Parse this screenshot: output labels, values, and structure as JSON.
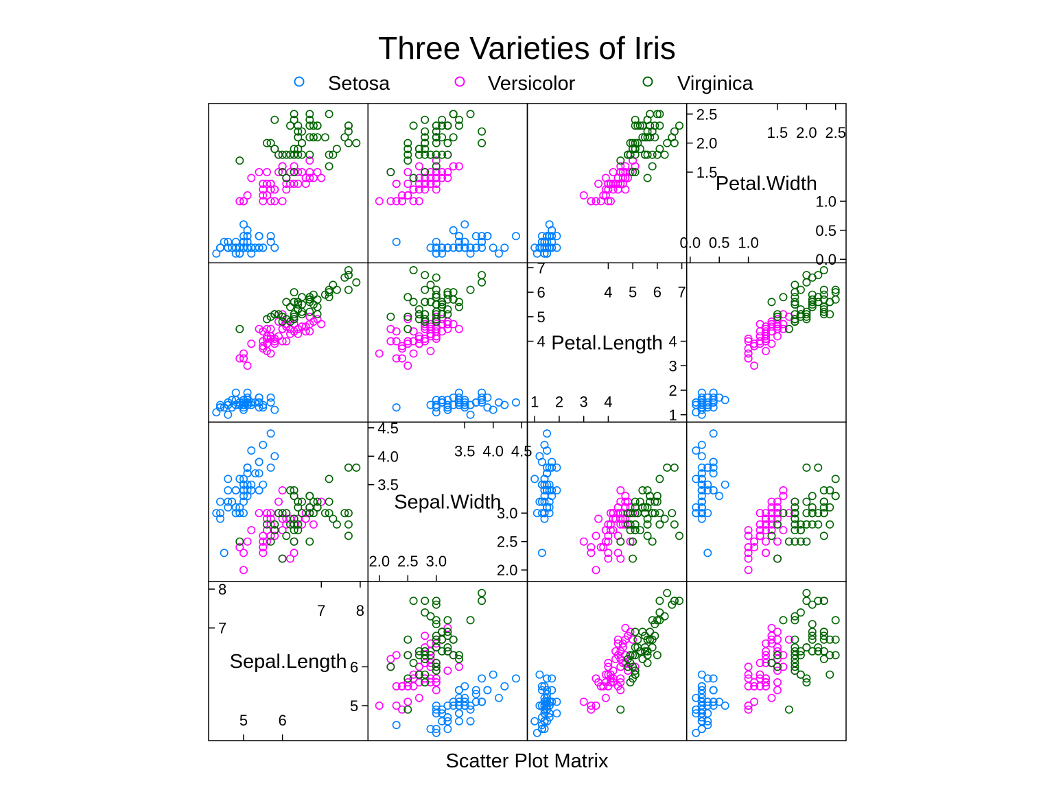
{
  "chart_data": {
    "type": "scatter",
    "title": "Three Varieties of Iris",
    "xlabel": "Scatter Plot Matrix",
    "variables": [
      "Sepal.Length",
      "Sepal.Width",
      "Petal.Length",
      "Petal.Width"
    ],
    "ranges": [
      [
        4.1,
        8.2
      ],
      [
        1.8,
        4.6
      ],
      [
        0.7,
        7.2
      ],
      [
        -0.06,
        2.68
      ]
    ],
    "ticks": {
      "Sepal.Length": {
        "low": [
          "5",
          "6"
        ],
        "high": [
          "7",
          "8"
        ]
      },
      "Sepal.Width": {
        "low": [
          "2.0",
          "2.5",
          "3.0"
        ],
        "high": [
          "3.5",
          "4.0",
          "4.5"
        ]
      },
      "Petal.Length": {
        "low": [
          "1",
          "2",
          "3",
          "4"
        ],
        "high": [
          "4",
          "5",
          "6",
          "7"
        ]
      },
      "Petal.Width": {
        "low": [
          "0.0",
          "0.5",
          "1.0"
        ],
        "high": [
          "1.5",
          "2.0",
          "2.5"
        ]
      }
    },
    "legend_position": "top",
    "colors": {
      "Setosa": "#0080ff",
      "Versicolor": "#ff00ff",
      "Virginica": "#006400"
    },
    "series": [
      {
        "name": "Setosa",
        "points": [
          [
            5.1,
            3.5,
            1.4,
            0.2
          ],
          [
            4.9,
            3.0,
            1.4,
            0.2
          ],
          [
            4.7,
            3.2,
            1.3,
            0.2
          ],
          [
            4.6,
            3.1,
            1.5,
            0.2
          ],
          [
            5.0,
            3.6,
            1.4,
            0.2
          ],
          [
            5.4,
            3.9,
            1.7,
            0.4
          ],
          [
            4.6,
            3.4,
            1.4,
            0.3
          ],
          [
            5.0,
            3.4,
            1.5,
            0.2
          ],
          [
            4.4,
            2.9,
            1.4,
            0.2
          ],
          [
            4.9,
            3.1,
            1.5,
            0.1
          ],
          [
            5.4,
            3.7,
            1.5,
            0.2
          ],
          [
            4.8,
            3.4,
            1.6,
            0.2
          ],
          [
            4.8,
            3.0,
            1.4,
            0.1
          ],
          [
            4.3,
            3.0,
            1.1,
            0.1
          ],
          [
            5.8,
            4.0,
            1.2,
            0.2
          ],
          [
            5.7,
            4.4,
            1.5,
            0.4
          ],
          [
            5.4,
            3.9,
            1.3,
            0.4
          ],
          [
            5.1,
            3.5,
            1.4,
            0.3
          ],
          [
            5.7,
            3.8,
            1.7,
            0.3
          ],
          [
            5.1,
            3.8,
            1.5,
            0.3
          ],
          [
            5.4,
            3.4,
            1.7,
            0.2
          ],
          [
            5.1,
            3.7,
            1.5,
            0.4
          ],
          [
            4.6,
            3.6,
            1.0,
            0.2
          ],
          [
            5.1,
            3.3,
            1.7,
            0.5
          ],
          [
            4.8,
            3.4,
            1.9,
            0.2
          ],
          [
            5.0,
            3.0,
            1.6,
            0.2
          ],
          [
            5.0,
            3.4,
            1.6,
            0.4
          ],
          [
            5.2,
            3.5,
            1.5,
            0.2
          ],
          [
            5.2,
            3.4,
            1.4,
            0.2
          ],
          [
            4.7,
            3.2,
            1.6,
            0.2
          ],
          [
            4.8,
            3.1,
            1.6,
            0.2
          ],
          [
            5.4,
            3.4,
            1.5,
            0.4
          ],
          [
            5.2,
            4.1,
            1.5,
            0.1
          ],
          [
            5.5,
            4.2,
            1.4,
            0.2
          ],
          [
            4.9,
            3.1,
            1.5,
            0.2
          ],
          [
            5.0,
            3.2,
            1.2,
            0.2
          ],
          [
            5.5,
            3.5,
            1.3,
            0.2
          ],
          [
            4.9,
            3.6,
            1.4,
            0.1
          ],
          [
            4.4,
            3.0,
            1.3,
            0.2
          ],
          [
            5.1,
            3.4,
            1.5,
            0.2
          ],
          [
            5.0,
            3.5,
            1.3,
            0.3
          ],
          [
            4.5,
            2.3,
            1.3,
            0.3
          ],
          [
            4.4,
            3.2,
            1.3,
            0.2
          ],
          [
            5.0,
            3.5,
            1.6,
            0.6
          ],
          [
            5.1,
            3.8,
            1.9,
            0.4
          ],
          [
            4.8,
            3.0,
            1.4,
            0.3
          ],
          [
            5.1,
            3.8,
            1.6,
            0.2
          ],
          [
            4.6,
            3.2,
            1.4,
            0.2
          ],
          [
            5.3,
            3.7,
            1.5,
            0.2
          ],
          [
            5.0,
            3.3,
            1.4,
            0.2
          ]
        ]
      },
      {
        "name": "Versicolor",
        "points": [
          [
            7.0,
            3.2,
            4.7,
            1.4
          ],
          [
            6.4,
            3.2,
            4.5,
            1.5
          ],
          [
            6.9,
            3.1,
            4.9,
            1.5
          ],
          [
            5.5,
            2.3,
            4.0,
            1.3
          ],
          [
            6.5,
            2.8,
            4.6,
            1.5
          ],
          [
            5.7,
            2.8,
            4.5,
            1.3
          ],
          [
            6.3,
            3.3,
            4.7,
            1.6
          ],
          [
            4.9,
            2.4,
            3.3,
            1.0
          ],
          [
            6.6,
            2.9,
            4.6,
            1.3
          ],
          [
            5.2,
            2.7,
            3.9,
            1.4
          ],
          [
            5.0,
            2.0,
            3.5,
            1.0
          ],
          [
            5.9,
            3.0,
            4.2,
            1.5
          ],
          [
            6.0,
            2.2,
            4.0,
            1.0
          ],
          [
            6.1,
            2.9,
            4.7,
            1.4
          ],
          [
            5.6,
            2.9,
            3.6,
            1.3
          ],
          [
            6.7,
            3.1,
            4.4,
            1.4
          ],
          [
            5.6,
            3.0,
            4.5,
            1.5
          ],
          [
            5.8,
            2.7,
            4.1,
            1.0
          ],
          [
            6.2,
            2.2,
            4.5,
            1.5
          ],
          [
            5.6,
            2.5,
            3.9,
            1.1
          ],
          [
            5.9,
            3.2,
            4.8,
            1.8
          ],
          [
            6.1,
            2.8,
            4.0,
            1.3
          ],
          [
            6.3,
            2.5,
            4.9,
            1.5
          ],
          [
            6.1,
            2.8,
            4.7,
            1.2
          ],
          [
            6.4,
            2.9,
            4.3,
            1.3
          ],
          [
            6.6,
            3.0,
            4.4,
            1.4
          ],
          [
            6.8,
            2.8,
            4.8,
            1.4
          ],
          [
            6.7,
            3.0,
            5.0,
            1.7
          ],
          [
            6.0,
            2.9,
            4.5,
            1.5
          ],
          [
            5.7,
            2.6,
            3.5,
            1.0
          ],
          [
            5.5,
            2.4,
            3.8,
            1.1
          ],
          [
            5.5,
            2.4,
            3.7,
            1.0
          ],
          [
            5.8,
            2.7,
            3.9,
            1.2
          ],
          [
            6.0,
            2.7,
            5.1,
            1.6
          ],
          [
            5.4,
            3.0,
            4.5,
            1.5
          ],
          [
            6.0,
            3.4,
            4.5,
            1.6
          ],
          [
            6.7,
            3.1,
            4.7,
            1.5
          ],
          [
            6.3,
            2.3,
            4.4,
            1.3
          ],
          [
            5.6,
            3.0,
            4.1,
            1.3
          ],
          [
            5.5,
            2.5,
            4.0,
            1.3
          ],
          [
            5.5,
            2.6,
            4.4,
            1.2
          ],
          [
            6.1,
            3.0,
            4.6,
            1.4
          ],
          [
            5.8,
            2.6,
            4.0,
            1.2
          ],
          [
            5.0,
            2.3,
            3.3,
            1.0
          ],
          [
            5.6,
            2.7,
            4.2,
            1.3
          ],
          [
            5.7,
            3.0,
            4.2,
            1.2
          ],
          [
            5.7,
            2.9,
            4.2,
            1.3
          ],
          [
            6.2,
            2.9,
            4.3,
            1.3
          ],
          [
            5.1,
            2.5,
            3.0,
            1.1
          ],
          [
            5.7,
            2.8,
            4.1,
            1.3
          ]
        ]
      },
      {
        "name": "Virginica",
        "points": [
          [
            6.3,
            3.3,
            6.0,
            2.5
          ],
          [
            5.8,
            2.7,
            5.1,
            1.9
          ],
          [
            7.1,
            3.0,
            5.9,
            2.1
          ],
          [
            6.3,
            2.9,
            5.6,
            1.8
          ],
          [
            6.5,
            3.0,
            5.8,
            2.2
          ],
          [
            7.6,
            3.0,
            6.6,
            2.1
          ],
          [
            4.9,
            2.5,
            4.5,
            1.7
          ],
          [
            7.3,
            2.9,
            6.3,
            1.8
          ],
          [
            6.7,
            2.5,
            5.8,
            1.8
          ],
          [
            7.2,
            3.6,
            6.1,
            2.5
          ],
          [
            6.5,
            3.2,
            5.1,
            2.0
          ],
          [
            6.4,
            2.7,
            5.3,
            1.9
          ],
          [
            6.8,
            3.0,
            5.5,
            2.1
          ],
          [
            5.7,
            2.5,
            5.0,
            2.0
          ],
          [
            5.8,
            2.8,
            5.1,
            2.4
          ],
          [
            6.4,
            3.2,
            5.3,
            2.3
          ],
          [
            6.5,
            3.0,
            5.5,
            1.8
          ],
          [
            7.7,
            3.8,
            6.7,
            2.2
          ],
          [
            7.7,
            2.6,
            6.9,
            2.3
          ],
          [
            6.0,
            2.2,
            5.0,
            1.5
          ],
          [
            6.9,
            3.2,
            5.7,
            2.3
          ],
          [
            5.6,
            2.8,
            4.9,
            2.0
          ],
          [
            7.7,
            2.8,
            6.7,
            2.0
          ],
          [
            6.3,
            2.7,
            4.9,
            1.8
          ],
          [
            6.7,
            3.3,
            5.7,
            2.1
          ],
          [
            7.2,
            3.2,
            6.0,
            1.8
          ],
          [
            6.2,
            2.8,
            4.8,
            1.8
          ],
          [
            6.1,
            3.0,
            4.9,
            1.8
          ],
          [
            6.4,
            2.8,
            5.6,
            2.1
          ],
          [
            7.2,
            3.0,
            5.8,
            1.6
          ],
          [
            7.4,
            2.8,
            6.1,
            1.9
          ],
          [
            7.9,
            3.8,
            6.4,
            2.0
          ],
          [
            6.4,
            2.8,
            5.6,
            2.2
          ],
          [
            6.3,
            2.8,
            5.1,
            1.5
          ],
          [
            6.1,
            2.6,
            5.6,
            1.4
          ],
          [
            7.7,
            3.0,
            6.1,
            2.3
          ],
          [
            6.3,
            3.4,
            5.6,
            2.4
          ],
          [
            6.4,
            3.1,
            5.5,
            1.8
          ],
          [
            6.0,
            3.0,
            4.8,
            1.8
          ],
          [
            6.9,
            3.1,
            5.4,
            2.1
          ],
          [
            6.7,
            3.1,
            5.6,
            2.4
          ],
          [
            6.9,
            3.1,
            5.1,
            2.3
          ],
          [
            5.8,
            2.7,
            5.1,
            1.9
          ],
          [
            6.8,
            3.2,
            5.9,
            2.3
          ],
          [
            6.7,
            3.3,
            5.7,
            2.5
          ],
          [
            6.7,
            3.0,
            5.2,
            2.3
          ],
          [
            6.3,
            2.5,
            5.0,
            1.9
          ],
          [
            6.5,
            3.0,
            5.2,
            2.0
          ],
          [
            6.2,
            3.4,
            5.4,
            2.3
          ],
          [
            5.9,
            3.0,
            5.1,
            1.8
          ]
        ]
      }
    ]
  }
}
